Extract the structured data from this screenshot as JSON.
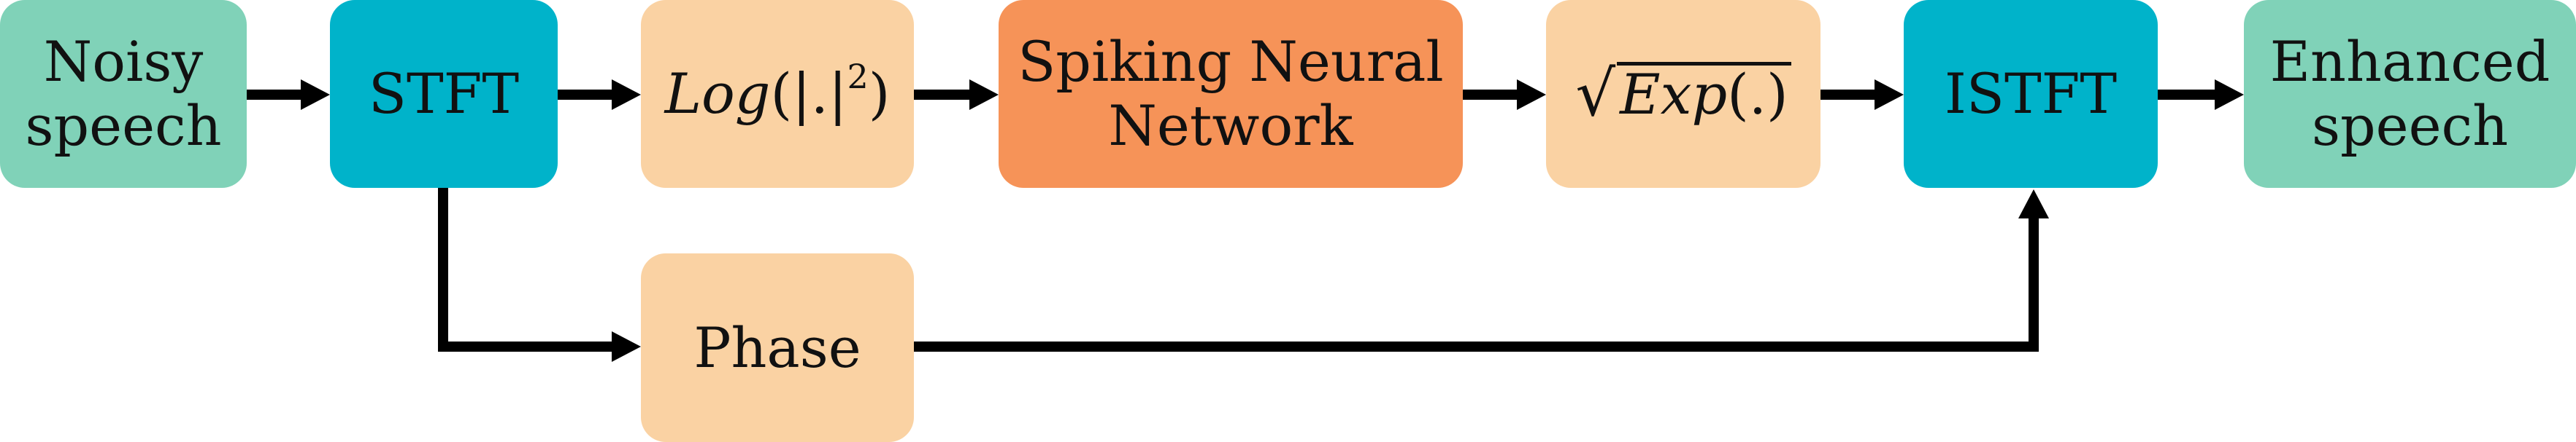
{
  "colors": {
    "input_output": "#80D2B8",
    "transform": "#00B3CA",
    "operation": "#FAD2A3",
    "network": "#F69358",
    "arrow": "#000000"
  },
  "nodes": {
    "noisy": [
      "Noisy",
      "speech"
    ],
    "stft": "STFT",
    "log": {
      "fn": "Log",
      "arg": "(|.|",
      "power": "2",
      "close": ")"
    },
    "snn": [
      "Spiking Neural",
      "Network"
    ],
    "exp": {
      "fn": "Exp",
      "arg": "(.)"
    },
    "istft": "ISTFT",
    "enhanced": [
      "Enhanced",
      "speech"
    ],
    "phase": "Phase"
  }
}
